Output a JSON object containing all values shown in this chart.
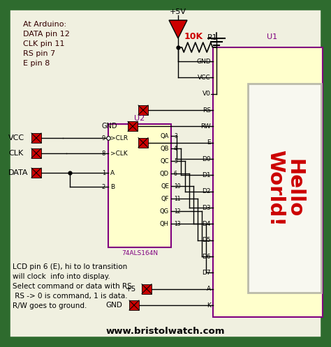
{
  "background_color": "#2e6b2e",
  "inner_bg_color": "#f0f0e0",
  "title_text": "www.bristolwatch.com",
  "arduino_text": "At Arduino:\nDATA pin 12\nCLK pin 11\nRS pin 7\nE pin 8",
  "bottom_text": "LCD pin 6 (E), hi to lo transition\nwill clock  info into display.\nSelect command or data with RS.\n RS -> 0 is command, 1 is data.\nR/W goes to ground.",
  "u2_label": "U2",
  "u1_label": "U1",
  "ic_label": "74ALS164N",
  "resistor_label": "10K",
  "r1_label": "R1",
  "vcc_label": "+5V",
  "plus5_label": "+5",
  "gnd_label": "GND",
  "hello_world_line1": "Hello",
  "hello_world_line2": "World!",
  "red": "#cc0000",
  "purple": "#800080",
  "black": "#000000",
  "yellow_bg": "#ffffcc",
  "screen_bg": "#f8f8e8",
  "led_red": "#cc0000",
  "wire_color": "#000000"
}
